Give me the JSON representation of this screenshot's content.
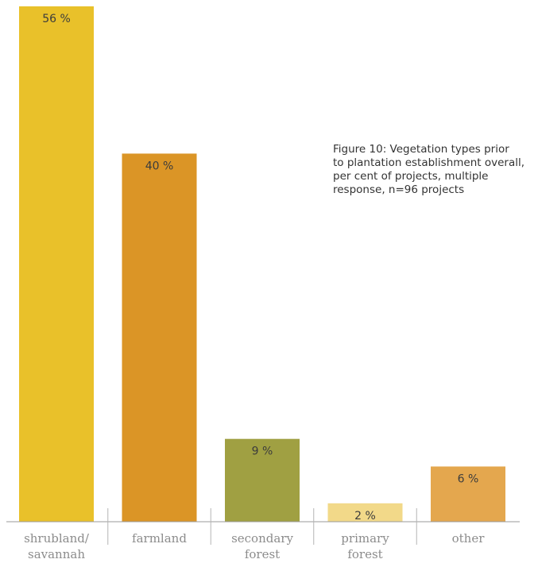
{
  "figure": {
    "caption_lines": [
      "Figure 10: Vegetation types prior",
      "to plantation establishment overall,",
      "per cent of projects, multiple",
      "response, n=96 projects"
    ]
  },
  "chart_data": {
    "type": "bar",
    "title": "",
    "xlabel": "",
    "ylabel": "",
    "ylim": [
      0,
      56
    ],
    "grid": false,
    "categories": [
      [
        "shrubland/",
        "savannah"
      ],
      [
        "farmland"
      ],
      [
        "secondary",
        "forest"
      ],
      [
        "primary",
        "forest"
      ],
      [
        "other"
      ]
    ],
    "values": [
      56,
      40,
      9,
      2,
      6
    ],
    "value_labels": [
      "56 %",
      "40 %",
      "9 %",
      "2 %",
      "6 %"
    ],
    "colors": [
      "#e9c12a",
      "#db9526",
      "#a0a042",
      "#f2d989",
      "#e4a74e"
    ]
  }
}
